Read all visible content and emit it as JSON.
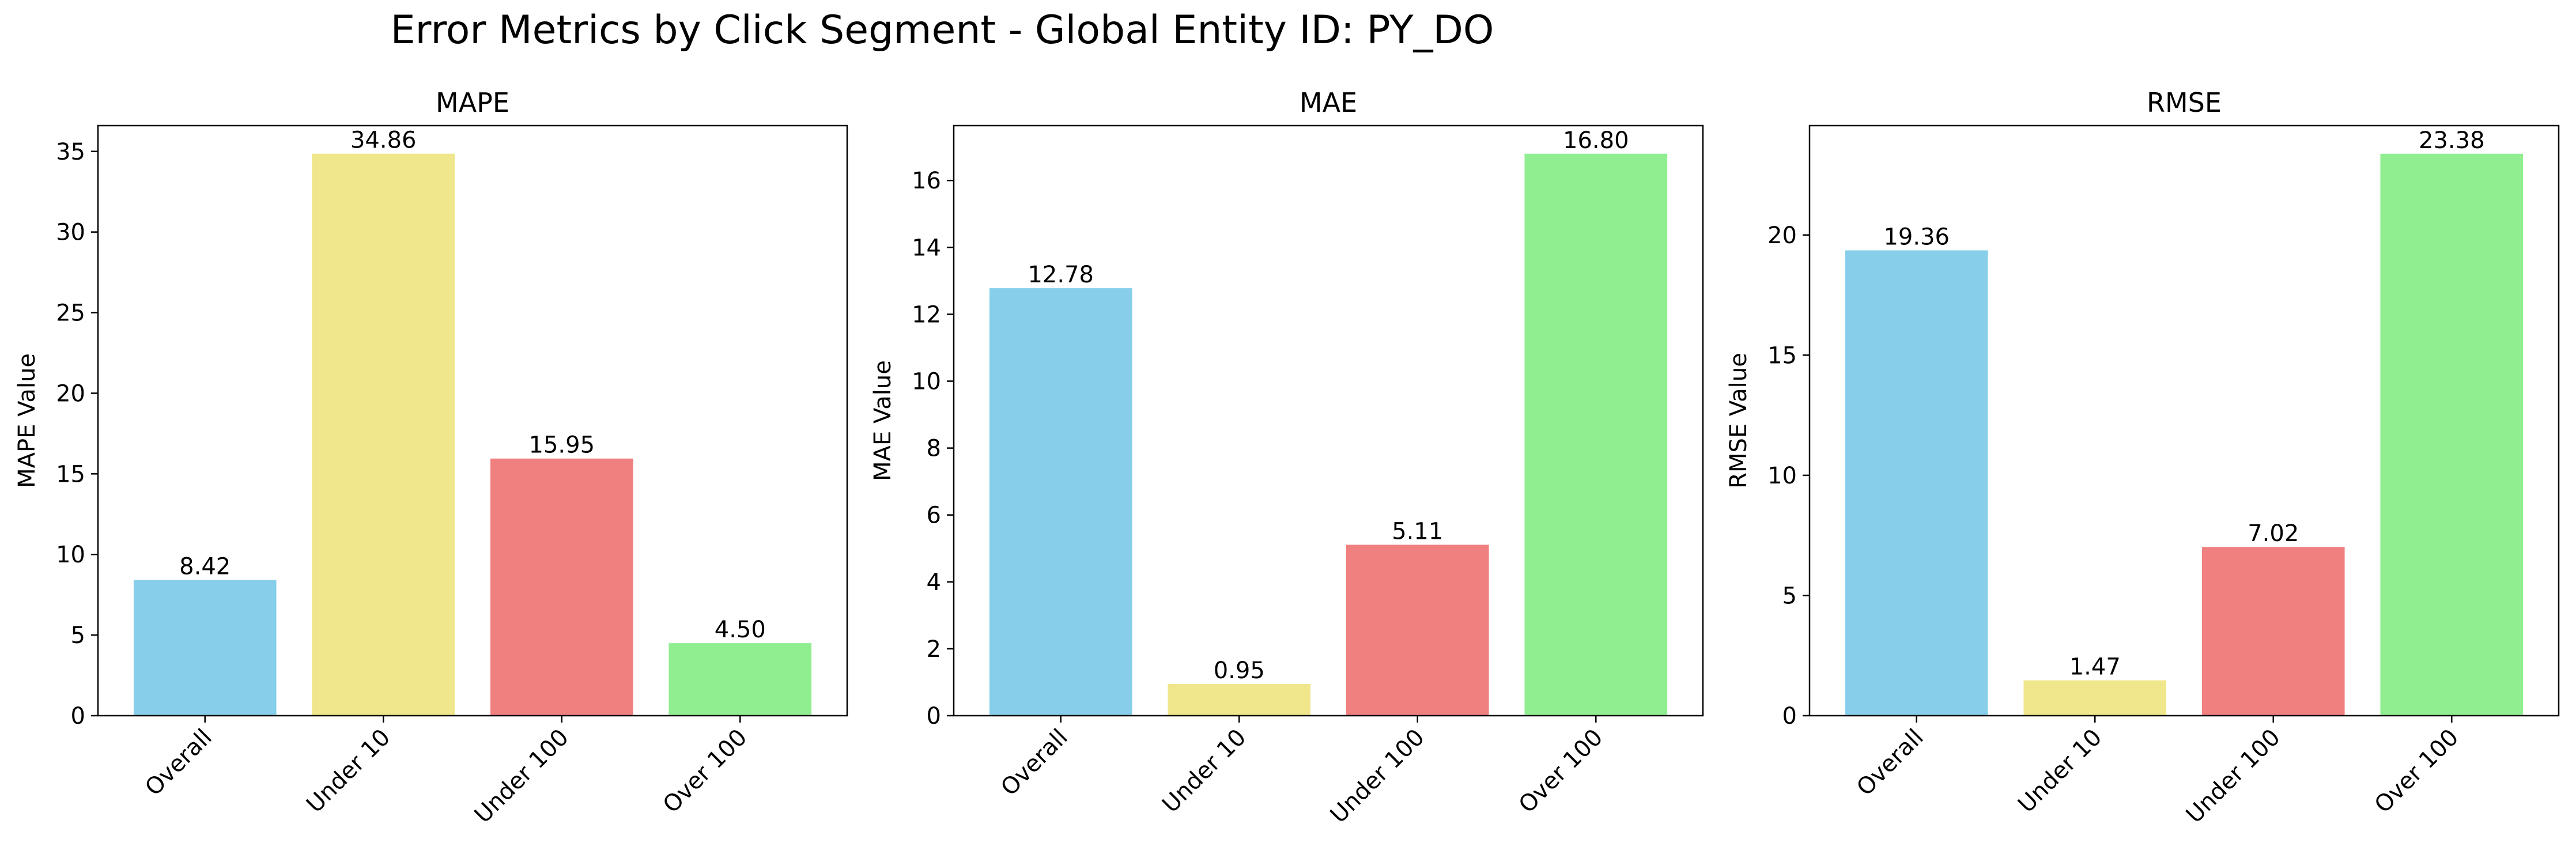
{
  "figure": {
    "suptitle": "Error Metrics by Click Segment - Global Entity ID: PY_DO"
  },
  "colors": {
    "Overall": "#87ceeb",
    "Under 10": "#f0e68c",
    "Under 100": "#f08080",
    "Over 100": "#90ee90",
    "axes": "#000000"
  },
  "chart_data": [
    {
      "type": "bar",
      "title": "MAPE",
      "ylabel": "MAPE Value",
      "xlabel": "",
      "categories": [
        "Overall",
        "Under 10",
        "Under 100",
        "Over 100"
      ],
      "values": [
        8.42,
        34.86,
        15.95,
        4.5
      ],
      "value_labels": [
        "8.42",
        "34.86",
        "15.95",
        "4.50"
      ],
      "ylim": [
        0,
        36.6
      ],
      "yticks": [
        0,
        5,
        10,
        15,
        20,
        25,
        30,
        35
      ],
      "grid": false
    },
    {
      "type": "bar",
      "title": "MAE",
      "ylabel": "MAE Value",
      "xlabel": "",
      "categories": [
        "Overall",
        "Under 10",
        "Under 100",
        "Over 100"
      ],
      "values": [
        12.78,
        0.95,
        5.11,
        16.8
      ],
      "value_labels": [
        "12.78",
        "0.95",
        "5.11",
        "16.80"
      ],
      "ylim": [
        0,
        17.64
      ],
      "yticks": [
        0,
        2,
        4,
        6,
        8,
        10,
        12,
        14,
        16
      ],
      "grid": false
    },
    {
      "type": "bar",
      "title": "RMSE",
      "ylabel": "RMSE Value",
      "xlabel": "",
      "categories": [
        "Overall",
        "Under 10",
        "Under 100",
        "Over 100"
      ],
      "values": [
        19.36,
        1.47,
        7.02,
        23.38
      ],
      "value_labels": [
        "19.36",
        "1.47",
        "7.02",
        "23.38"
      ],
      "ylim": [
        0,
        24.55
      ],
      "yticks": [
        0,
        5,
        10,
        15,
        20
      ],
      "grid": false
    }
  ]
}
